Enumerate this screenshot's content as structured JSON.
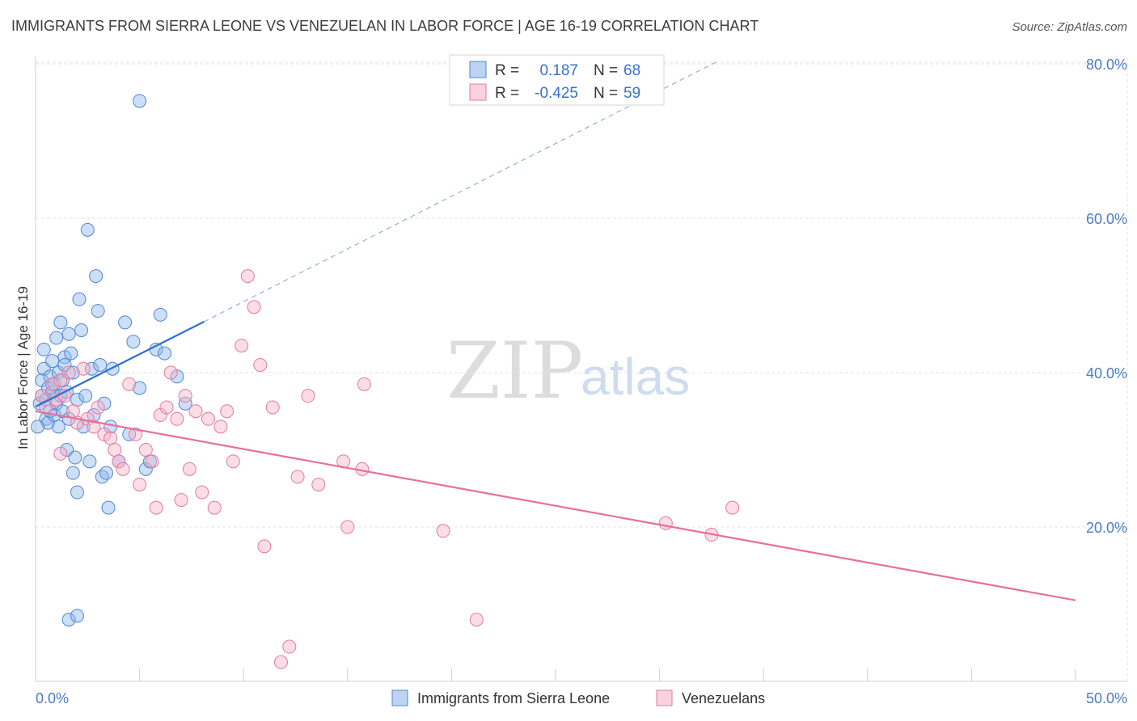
{
  "chart_data": {
    "type": "scatter",
    "title": "IMMIGRANTS FROM SIERRA LEONE VS VENEZUELAN IN LABOR FORCE | AGE 16-19 CORRELATION CHART",
    "source": "Source: ZipAtlas.com",
    "ylabel": "In Labor Force | Age 16-19",
    "xlim": [
      0,
      50
    ],
    "ylim": [
      0,
      82
    ],
    "x_tick_labels": [
      "0.0%",
      "50.0%"
    ],
    "y_ticks": [
      20,
      40,
      60,
      80
    ],
    "y_tick_labels": [
      "20.0%",
      "40.0%",
      "60.0%",
      "80.0%"
    ],
    "watermark": {
      "zip": "ZIP",
      "atlas": "atlas"
    },
    "legend": [
      {
        "name": "Immigrants from Sierra Leone",
        "r_label": "R =",
        "r": "0.187",
        "n_label": "N =",
        "n": "68",
        "color": "#8fb8ea",
        "stroke": "#4f86d4"
      },
      {
        "name": "Venezuelans",
        "r_label": "R =",
        "r": "-0.425",
        "n_label": "N =",
        "n": "59",
        "color": "#f6b3c8",
        "stroke": "#e5799d"
      }
    ],
    "series": [
      {
        "name": "Immigrants from Sierra Leone",
        "fill": "#8fb8ea",
        "stroke": "#4f86d4",
        "trend_color": "#2f6fd0",
        "trend_solid": {
          "x": [
            0,
            8.1
          ],
          "y": [
            35.6,
            46.6
          ]
        },
        "trend_dashed": {
          "x": [
            8.1,
            32.7
          ],
          "y": [
            46.6,
            80.2
          ]
        },
        "points": [
          [
            0.2,
            36
          ],
          [
            0.3,
            37
          ],
          [
            0.3,
            39
          ],
          [
            0.4,
            40.5
          ],
          [
            0.4,
            43
          ],
          [
            0.5,
            34
          ],
          [
            0.5,
            36.5
          ],
          [
            0.6,
            38
          ],
          [
            0.6,
            33.5
          ],
          [
            0.7,
            35
          ],
          [
            0.7,
            39.5
          ],
          [
            0.8,
            37.5
          ],
          [
            0.8,
            41.5
          ],
          [
            0.9,
            34.5
          ],
          [
            0.9,
            38.5
          ],
          [
            1.0,
            36
          ],
          [
            1.0,
            44.5
          ],
          [
            1.1,
            33
          ],
          [
            1.1,
            40
          ],
          [
            1.2,
            46.5
          ],
          [
            1.2,
            37
          ],
          [
            1.3,
            39
          ],
          [
            1.3,
            35
          ],
          [
            1.4,
            42
          ],
          [
            1.4,
            41
          ],
          [
            1.5,
            30
          ],
          [
            1.5,
            37.5
          ],
          [
            1.6,
            45
          ],
          [
            1.6,
            34
          ],
          [
            1.7,
            42.5
          ],
          [
            1.8,
            40
          ],
          [
            1.8,
            27
          ],
          [
            1.9,
            29
          ],
          [
            2.0,
            24.5
          ],
          [
            2.0,
            36.5
          ],
          [
            2.1,
            49.5
          ],
          [
            2.2,
            45.5
          ],
          [
            2.3,
            33
          ],
          [
            2.4,
            37
          ],
          [
            2.5,
            58.5
          ],
          [
            2.6,
            28.5
          ],
          [
            2.7,
            40.5
          ],
          [
            2.8,
            34.5
          ],
          [
            2.9,
            52.5
          ],
          [
            3.0,
            48
          ],
          [
            3.1,
            41
          ],
          [
            3.2,
            26.5
          ],
          [
            3.3,
            36
          ],
          [
            3.4,
            27
          ],
          [
            3.5,
            22.5
          ],
          [
            3.6,
            33
          ],
          [
            3.7,
            40.5
          ],
          [
            4.0,
            28.5
          ],
          [
            4.3,
            46.5
          ],
          [
            4.5,
            32
          ],
          [
            4.7,
            44
          ],
          [
            5.0,
            38
          ],
          [
            5.3,
            27.5
          ],
          [
            5.5,
            28.5
          ],
          [
            5.8,
            43
          ],
          [
            6.2,
            42.5
          ],
          [
            6.8,
            39.5
          ],
          [
            6.0,
            47.5
          ],
          [
            7.2,
            36
          ],
          [
            1.6,
            8
          ],
          [
            2.0,
            8.5
          ],
          [
            5.0,
            75.2
          ],
          [
            0.1,
            33
          ]
        ]
      },
      {
        "name": "Venezuelans",
        "fill": "#f6b3c8",
        "stroke": "#e5799d",
        "trend_color": "#e5709a",
        "trend_solid": {
          "x": [
            0,
            50
          ],
          "y": [
            35,
            10.5
          ]
        },
        "points": [
          [
            0.3,
            37
          ],
          [
            0.5,
            35.5
          ],
          [
            0.8,
            38.5
          ],
          [
            1.0,
            36.5
          ],
          [
            1.2,
            39
          ],
          [
            1.4,
            37
          ],
          [
            1.6,
            40
          ],
          [
            1.8,
            35
          ],
          [
            2.0,
            33.5
          ],
          [
            2.3,
            40.5
          ],
          [
            2.5,
            34
          ],
          [
            2.8,
            33
          ],
          [
            3.0,
            35.5
          ],
          [
            3.3,
            32
          ],
          [
            3.6,
            31.5
          ],
          [
            3.8,
            30
          ],
          [
            4.0,
            28.5
          ],
          [
            4.2,
            27.5
          ],
          [
            4.5,
            38.5
          ],
          [
            4.8,
            32
          ],
          [
            5.0,
            25.5
          ],
          [
            5.3,
            30
          ],
          [
            5.6,
            28.5
          ],
          [
            5.8,
            22.5
          ],
          [
            6.0,
            34.5
          ],
          [
            6.3,
            35.5
          ],
          [
            6.5,
            40
          ],
          [
            6.8,
            34
          ],
          [
            7.0,
            23.5
          ],
          [
            7.2,
            37
          ],
          [
            7.4,
            27.5
          ],
          [
            7.7,
            35
          ],
          [
            8.0,
            24.5
          ],
          [
            8.3,
            34
          ],
          [
            8.6,
            22.5
          ],
          [
            8.9,
            33
          ],
          [
            9.2,
            35
          ],
          [
            9.5,
            28.5
          ],
          [
            9.9,
            43.5
          ],
          [
            10.2,
            52.5
          ],
          [
            10.5,
            48.5
          ],
          [
            10.8,
            41
          ],
          [
            11.0,
            17.5
          ],
          [
            11.4,
            35.5
          ],
          [
            11.8,
            2.5
          ],
          [
            12.2,
            4.5
          ],
          [
            12.6,
            26.5
          ],
          [
            13.1,
            37
          ],
          [
            13.6,
            25.5
          ],
          [
            14.8,
            28.5
          ],
          [
            15.0,
            20
          ],
          [
            15.7,
            27.5
          ],
          [
            15.8,
            38.5
          ],
          [
            19.6,
            19.5
          ],
          [
            21.2,
            8
          ],
          [
            30.3,
            20.5
          ],
          [
            32.5,
            19
          ],
          [
            33.5,
            22.5
          ],
          [
            1.2,
            29.5
          ]
        ]
      }
    ]
  }
}
